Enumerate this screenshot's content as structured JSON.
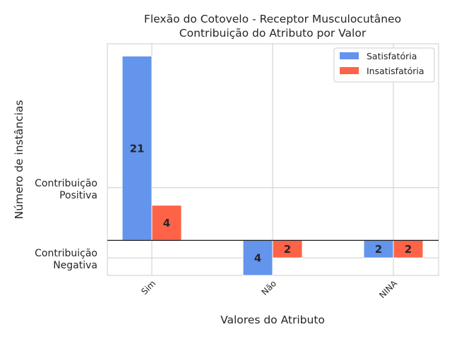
{
  "chart_data": {
    "type": "bar",
    "title": "Flexão do Cotovelo - Receptor Musculocutâneo",
    "subtitle": "Contribuição do Atributo por Valor",
    "xlabel": "Valores do Atributo",
    "ylabel": "Número de instâncias",
    "categories": [
      "Sim",
      "Não",
      "NINA"
    ],
    "y_tick_labels": [
      {
        "value": 3,
        "lines": [
          "Contribuição",
          "Positiva"
        ]
      },
      {
        "value": -1,
        "lines": [
          "Contribuição",
          "Negativa"
        ]
      }
    ],
    "ylim": [
      -2.0,
      11.2
    ],
    "grid": true,
    "legend_position": "top-right",
    "series": [
      {
        "name": "Satisfatória",
        "color": "#6495ED",
        "values": [
          10.5,
          -2,
          -1
        ],
        "labels": [
          "21",
          "4",
          "2"
        ]
      },
      {
        "name": "Insatisfatória",
        "color": "#FF6347",
        "values": [
          2,
          -1,
          -1
        ],
        "labels": [
          "4",
          "2",
          "2"
        ]
      }
    ]
  }
}
